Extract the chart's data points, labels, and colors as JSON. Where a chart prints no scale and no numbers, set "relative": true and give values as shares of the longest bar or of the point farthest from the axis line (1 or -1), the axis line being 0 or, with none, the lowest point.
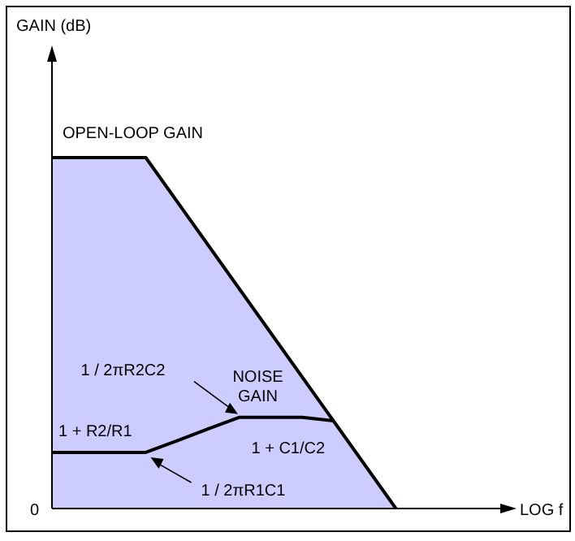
{
  "chart_data": {
    "type": "area",
    "relative": true,
    "xlabel": "LOG f",
    "categories": [
      null,
      null,
      null,
      null,
      null,
      null,
      null,
      null,
      null,
      null,
      null,
      null,
      null,
      null,
      null,
      null,
      null
    ],
    "series": [
      {
        "color": "#ccccff",
        "values": [
          1,
          1,
          1,
          1,
          0.875,
          0.75,
          0.625,
          0.5,
          0.375,
          0.25,
          0.125,
          0,
          null,
          null,
          null,
          null,
          null
        ]
      },
      {
        "type": "line",
        "color": "#000000",
        "values": [
          0.16,
          0.16,
          0.16,
          0.16,
          0.193,
          0.227,
          0.26,
          0.26,
          0.26,
          0.25,
          null,
          null,
          null,
          null,
          null,
          null,
          null
        ]
      }
    ],
    "annotations": [
      "GAIN (dB)",
      "0",
      "OPEN-LOOP GAIN",
      "NOISE GAIN",
      "1 + R2/R1",
      "1 / 2πR2C2",
      "1 + C1/C2",
      "1 / 2πR1C1"
    ]
  }
}
